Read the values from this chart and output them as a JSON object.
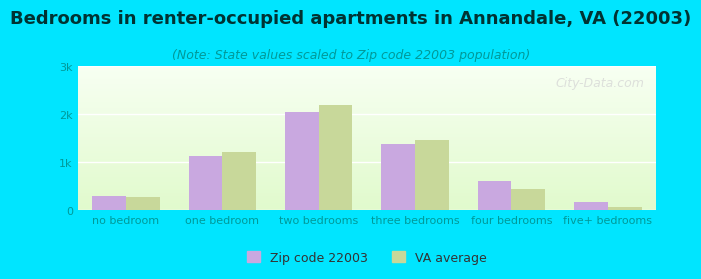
{
  "title": "Bedrooms in renter-occupied apartments in Annandale, VA (22003)",
  "subtitle": "(Note: State values scaled to Zip code 22003 population)",
  "categories": [
    "no bedroom",
    "one bedroom",
    "two bedrooms",
    "three bedrooms",
    "four bedrooms",
    "five+ bedrooms"
  ],
  "zip_values": [
    300,
    1130,
    2060,
    1380,
    620,
    185
  ],
  "va_values": [
    270,
    1220,
    2200,
    1460,
    450,
    80
  ],
  "zip_color": "#c9a8e0",
  "va_color": "#c8d89a",
  "ylim": [
    0,
    3000
  ],
  "yticks": [
    0,
    1000,
    2000,
    3000
  ],
  "ytick_labels": [
    "0",
    "1k",
    "2k",
    "3k"
  ],
  "bar_width": 0.35,
  "background_outer": "#00e5ff",
  "grid_color": "#ffffff",
  "legend_zip": "Zip code 22003",
  "legend_va": "VA average",
  "title_fontsize": 13,
  "subtitle_fontsize": 9,
  "axis_label_fontsize": 8,
  "tick_fontsize": 8,
  "watermark": "City-Data.com"
}
